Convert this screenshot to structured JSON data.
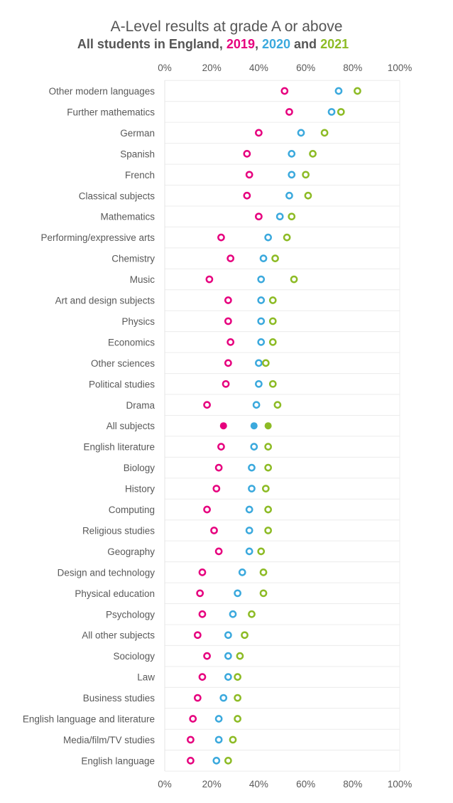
{
  "chart_data": {
    "type": "scatter",
    "title": "A-Level results at grade A or above",
    "subtitle": {
      "prefix": "All students in England,",
      "sep1": ",",
      "sep2": "and",
      "years": [
        "2019",
        "2020",
        "2021"
      ]
    },
    "xlim": [
      0,
      100
    ],
    "x_ticks": [
      "0%",
      "20%",
      "40%",
      "60%",
      "80%",
      "100%"
    ],
    "series": [
      {
        "name": "2019",
        "color": "#e6007e",
        "marker": "open-circle",
        "highlight_marker": "filled-circle"
      },
      {
        "name": "2020",
        "color": "#3ba9dd",
        "marker": "open-circle",
        "highlight_marker": "filled-circle"
      },
      {
        "name": "2021",
        "color": "#8dbb25",
        "marker": "open-circle",
        "highlight_marker": "filled-circle"
      }
    ],
    "highlight_category": "All subjects",
    "categories": [
      {
        "name": "Other modern languages",
        "values": [
          51,
          74,
          82
        ]
      },
      {
        "name": "Further mathematics",
        "values": [
          53,
          71,
          75
        ]
      },
      {
        "name": "German",
        "values": [
          40,
          58,
          68
        ]
      },
      {
        "name": "Spanish",
        "values": [
          35,
          54,
          63
        ]
      },
      {
        "name": "French",
        "values": [
          36,
          54,
          60
        ]
      },
      {
        "name": "Classical subjects",
        "values": [
          35,
          53,
          61
        ]
      },
      {
        "name": "Mathematics",
        "values": [
          40,
          49,
          54
        ]
      },
      {
        "name": "Performing/expressive arts",
        "values": [
          24,
          44,
          52
        ]
      },
      {
        "name": "Chemistry",
        "values": [
          28,
          42,
          47
        ]
      },
      {
        "name": "Music",
        "values": [
          19,
          41,
          55
        ]
      },
      {
        "name": "Art and design subjects",
        "values": [
          27,
          41,
          46
        ]
      },
      {
        "name": "Physics",
        "values": [
          27,
          41,
          46
        ]
      },
      {
        "name": "Economics",
        "values": [
          28,
          41,
          46
        ]
      },
      {
        "name": "Other sciences",
        "values": [
          27,
          40,
          43
        ]
      },
      {
        "name": "Political studies",
        "values": [
          26,
          40,
          46
        ]
      },
      {
        "name": "Drama",
        "values": [
          18,
          39,
          48
        ]
      },
      {
        "name": "All subjects",
        "values": [
          25,
          38,
          44
        ]
      },
      {
        "name": "English literature",
        "values": [
          24,
          38,
          44
        ]
      },
      {
        "name": "Biology",
        "values": [
          23,
          37,
          44
        ]
      },
      {
        "name": "History",
        "values": [
          22,
          37,
          43
        ]
      },
      {
        "name": "Computing",
        "values": [
          18,
          36,
          44
        ]
      },
      {
        "name": "Religious studies",
        "values": [
          21,
          36,
          44
        ]
      },
      {
        "name": "Geography",
        "values": [
          23,
          36,
          41
        ]
      },
      {
        "name": "Design and technology",
        "values": [
          16,
          33,
          42
        ]
      },
      {
        "name": "Physical education",
        "values": [
          15,
          31,
          42
        ]
      },
      {
        "name": "Psychology",
        "values": [
          16,
          29,
          37
        ]
      },
      {
        "name": "All other subjects",
        "values": [
          14,
          27,
          34
        ]
      },
      {
        "name": "Sociology",
        "values": [
          18,
          27,
          32
        ]
      },
      {
        "name": "Law",
        "values": [
          16,
          27,
          31
        ]
      },
      {
        "name": "Business studies",
        "values": [
          14,
          25,
          31
        ]
      },
      {
        "name": "English language and literature",
        "values": [
          12,
          23,
          31
        ]
      },
      {
        "name": "Media/film/TV studies",
        "values": [
          11,
          23,
          29
        ]
      },
      {
        "name": "English language",
        "values": [
          11,
          22,
          27
        ]
      }
    ]
  }
}
